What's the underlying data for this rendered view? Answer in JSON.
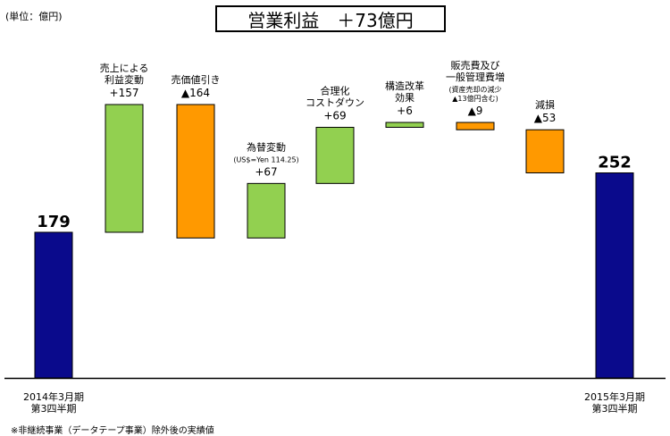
{
  "unit_note": "(単位：億円)",
  "title": "営業利益　＋73億円",
  "footnote": "※非継続事業（データテープ事業）除外後の実績値",
  "colors": {
    "total": "#0a0a8c",
    "increase": "#92d050",
    "decrease": "#ff9900"
  },
  "chart_data": {
    "type": "bar",
    "subtype": "waterfall",
    "ylim": [
      0,
      340
    ],
    "steps": [
      {
        "kind": "total",
        "value": 179,
        "start": 0,
        "end": 179,
        "value_label": "179",
        "label_lines": [],
        "sub_lines": [],
        "x_lines": [
          "2014年3月期",
          "第3四半期"
        ]
      },
      {
        "kind": "increase",
        "value": 157,
        "start": 179,
        "end": 336,
        "value_label": "+157",
        "label_lines": [
          "売上による",
          "利益変動"
        ],
        "sub_lines": [],
        "x_lines": []
      },
      {
        "kind": "decrease",
        "value": -164,
        "start": 336,
        "end": 172,
        "value_label": "▲164",
        "label_lines": [
          "売価値引き"
        ],
        "sub_lines": [],
        "x_lines": []
      },
      {
        "kind": "increase",
        "value": 67,
        "start": 172,
        "end": 239,
        "value_label": "+67",
        "label_lines": [
          "為替変動"
        ],
        "sub_lines": [
          "(US$=Yen 114.25)"
        ],
        "x_lines": []
      },
      {
        "kind": "increase",
        "value": 69,
        "start": 239,
        "end": 308,
        "value_label": "+69",
        "label_lines": [
          "合理化",
          "コストダウン"
        ],
        "sub_lines": [],
        "x_lines": []
      },
      {
        "kind": "increase",
        "value": 6,
        "start": 308,
        "end": 314,
        "value_label": "+6",
        "label_lines": [
          "構造改革",
          "効果"
        ],
        "sub_lines": [],
        "x_lines": []
      },
      {
        "kind": "decrease",
        "value": -9,
        "start": 314,
        "end": 305,
        "value_label": "▲9",
        "label_lines": [
          "販売費及び",
          "一般管理費増"
        ],
        "sub_lines": [
          "(資産売却の減少",
          "▲13億円含む)"
        ],
        "x_lines": []
      },
      {
        "kind": "decrease",
        "value": -53,
        "start": 305,
        "end": 252,
        "value_label": "▲53",
        "label_lines": [
          "減損"
        ],
        "sub_lines": [],
        "x_lines": []
      },
      {
        "kind": "total",
        "value": 252,
        "start": 0,
        "end": 252,
        "value_label": "252",
        "label_lines": [],
        "sub_lines": [],
        "x_lines": [
          "2015年3月期",
          "第3四半期"
        ]
      }
    ]
  }
}
